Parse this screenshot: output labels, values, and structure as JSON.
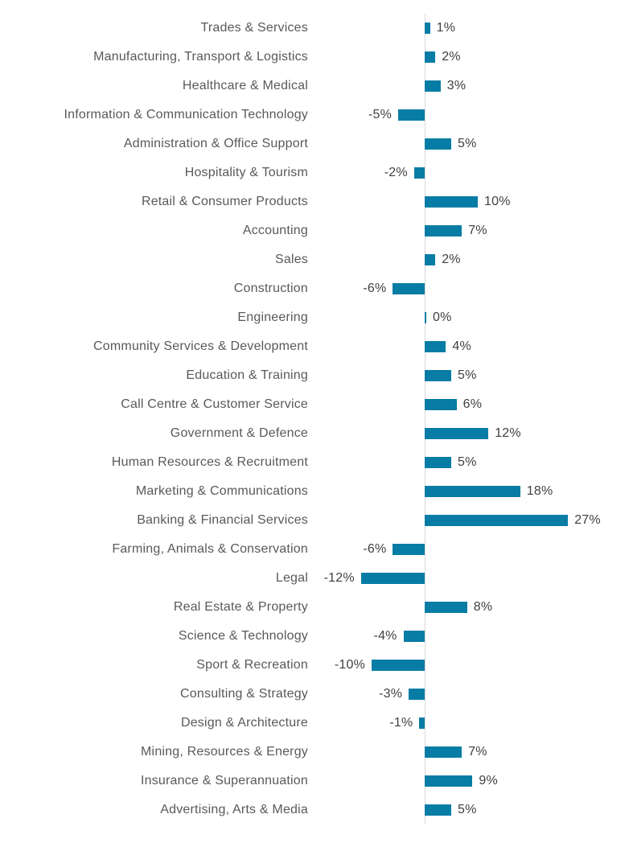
{
  "chart_data": {
    "type": "bar",
    "orientation": "horizontal",
    "title": "",
    "xlabel": "",
    "ylabel": "",
    "unit": "%",
    "xlim": [
      -12,
      27
    ],
    "grid": false,
    "legend": false,
    "categories": [
      "Trades & Services",
      "Manufacturing, Transport & Logistics",
      "Healthcare & Medical",
      "Information & Communication Technology",
      "Administration & Office Support",
      "Hospitality & Tourism",
      "Retail & Consumer Products",
      "Accounting",
      "Sales",
      "Construction",
      "Engineering",
      "Community Services & Development",
      "Education & Training",
      "Call Centre & Customer Service",
      "Government & Defence",
      "Human Resources & Recruitment",
      "Marketing & Communications",
      "Banking & Financial Services",
      "Farming, Animals & Conservation",
      "Legal",
      "Real Estate & Property",
      "Science & Technology",
      "Sport & Recreation",
      "Consulting & Strategy",
      "Design & Architecture",
      "Mining, Resources & Energy",
      "Insurance & Superannuation",
      "Advertising, Arts & Media"
    ],
    "values": [
      1,
      2,
      3,
      -5,
      5,
      -2,
      10,
      7,
      2,
      -6,
      0,
      4,
      5,
      6,
      12,
      5,
      18,
      27,
      -6,
      -12,
      8,
      -4,
      -10,
      -3,
      -1,
      7,
      9,
      5
    ],
    "value_labels": [
      "1%",
      "2%",
      "3%",
      "-5%",
      "5%",
      "-2%",
      "10%",
      "7%",
      "2%",
      "-6%",
      "0%",
      "4%",
      "5%",
      "6%",
      "12%",
      "5%",
      "18%",
      "27%",
      "-6%",
      "-12%",
      "8%",
      "-4%",
      "-10%",
      "-3%",
      "-1%",
      "7%",
      "9%",
      "5%"
    ],
    "colors": {
      "bar": "#077CA4",
      "axis_line": "#D9D9D9",
      "category_text": "#58595B",
      "value_text": "#414042",
      "background": "#FFFFFF"
    }
  }
}
